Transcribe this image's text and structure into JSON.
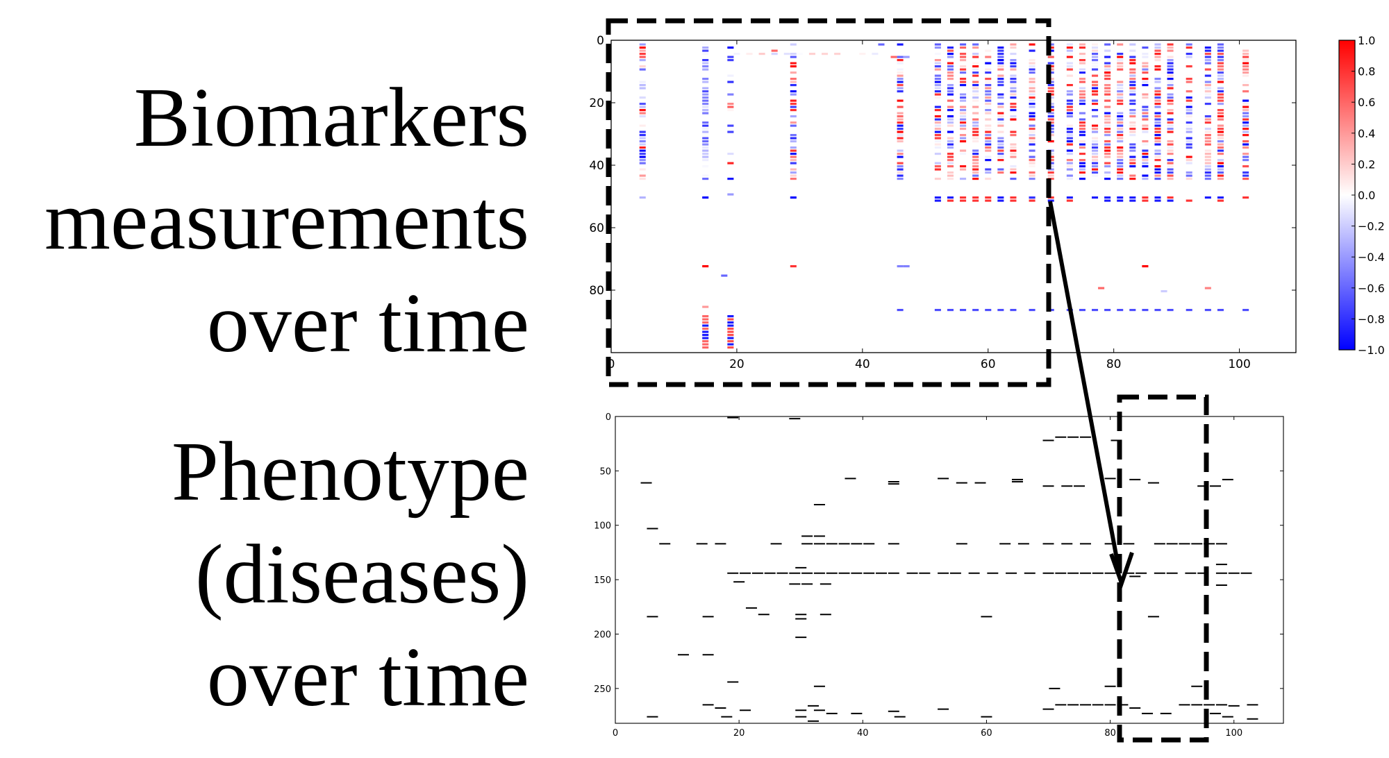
{
  "labels": {
    "biomarkers": [
      "Biomarkers",
      "measurements",
      "over time"
    ],
    "phenotype": [
      "Phenotype",
      "(diseases)",
      "over time"
    ]
  },
  "colors": {
    "negative": "#0000ff",
    "neutral": "#ffffff",
    "positive": "#ff0000",
    "ink": "#000000"
  },
  "chart_data": [
    {
      "type": "heatmap",
      "name": "biomarkers",
      "xlim": [
        0,
        109
      ],
      "ylim": [
        100,
        0
      ],
      "xticks": [
        0,
        20,
        40,
        60,
        80,
        100
      ],
      "yticks": [
        0,
        20,
        40,
        60,
        80
      ],
      "colorbar": {
        "range": [
          -1.0,
          1.0
        ],
        "ticks": [
          "1.0",
          "0.8",
          "0.6",
          "0.4",
          "0.2",
          "0.0",
          "−0.2",
          "−0.4",
          "−0.6",
          "−0.8",
          "−1.0"
        ]
      },
      "grid": false,
      "dense_columns": [
        5,
        15,
        19,
        29,
        46,
        52,
        54,
        56,
        58,
        60,
        62,
        64,
        67,
        70,
        73,
        75,
        77,
        79,
        81,
        83,
        85,
        87,
        89,
        92,
        95,
        97,
        101
      ],
      "sparse_cells": [
        [
          26,
          3,
          0.6
        ],
        [
          43,
          1,
          -0.6
        ],
        [
          45,
          5,
          0.6
        ],
        [
          47,
          5,
          -0.4
        ],
        [
          19,
          49,
          -0.4
        ],
        [
          67,
          50,
          -0.8
        ],
        [
          85,
          72,
          1.0
        ],
        [
          78,
          79,
          0.6
        ],
        [
          88,
          80,
          -0.2
        ],
        [
          95,
          79,
          0.5
        ],
        [
          15,
          72,
          1.0
        ],
        [
          15,
          85,
          0.4
        ],
        [
          18,
          75,
          -0.6
        ],
        [
          29,
          72,
          0.8
        ],
        [
          46,
          72,
          -0.5
        ],
        [
          47,
          72,
          -0.5
        ]
      ]
    },
    {
      "type": "scatter",
      "name": "phenotype",
      "marker": "short horizontal dash",
      "xlim": [
        0,
        108
      ],
      "ylim": [
        282,
        0
      ],
      "xticks": [
        0,
        20,
        40,
        60,
        80,
        100
      ],
      "yticks": [
        0,
        50,
        100,
        150,
        200,
        250
      ],
      "points": [
        [
          19,
          1
        ],
        [
          29,
          2
        ],
        [
          70,
          22
        ],
        [
          72,
          19
        ],
        [
          74,
          19
        ],
        [
          76,
          19
        ],
        [
          81,
          22
        ],
        [
          5,
          61
        ],
        [
          38,
          57
        ],
        [
          45,
          60
        ],
        [
          45,
          62
        ],
        [
          53,
          57
        ],
        [
          56,
          61
        ],
        [
          59,
          61
        ],
        [
          65,
          58
        ],
        [
          65,
          60
        ],
        [
          70,
          64
        ],
        [
          73,
          64
        ],
        [
          75,
          64
        ],
        [
          80,
          57
        ],
        [
          84,
          58
        ],
        [
          87,
          61
        ],
        [
          95,
          64
        ],
        [
          97,
          64
        ],
        [
          99,
          58
        ],
        [
          6,
          103
        ],
        [
          8,
          117
        ],
        [
          14,
          117
        ],
        [
          17,
          117
        ],
        [
          26,
          117
        ],
        [
          31,
          110
        ],
        [
          33,
          110
        ],
        [
          31,
          117
        ],
        [
          33,
          117
        ],
        [
          35,
          117
        ],
        [
          37,
          117
        ],
        [
          39,
          117
        ],
        [
          41,
          117
        ],
        [
          45,
          117
        ],
        [
          56,
          117
        ],
        [
          63,
          117
        ],
        [
          66,
          117
        ],
        [
          70,
          117
        ],
        [
          73,
          117
        ],
        [
          76,
          117
        ],
        [
          80,
          117
        ],
        [
          83,
          117
        ],
        [
          88,
          117
        ],
        [
          90,
          117
        ],
        [
          92,
          117
        ],
        [
          94,
          117
        ],
        [
          96,
          117
        ],
        [
          98,
          117
        ],
        [
          30,
          139
        ],
        [
          98,
          136
        ],
        [
          19,
          144
        ],
        [
          21,
          144
        ],
        [
          23,
          144
        ],
        [
          25,
          144
        ],
        [
          27,
          144
        ],
        [
          29,
          144
        ],
        [
          31,
          144
        ],
        [
          33,
          144
        ],
        [
          35,
          144
        ],
        [
          37,
          144
        ],
        [
          39,
          144
        ],
        [
          41,
          144
        ],
        [
          43,
          144
        ],
        [
          45,
          144
        ],
        [
          48,
          144
        ],
        [
          50,
          144
        ],
        [
          53,
          144
        ],
        [
          55,
          144
        ],
        [
          58,
          144
        ],
        [
          61,
          144
        ],
        [
          64,
          144
        ],
        [
          67,
          144
        ],
        [
          70,
          144
        ],
        [
          72,
          144
        ],
        [
          74,
          144
        ],
        [
          76,
          144
        ],
        [
          78,
          144
        ],
        [
          80,
          144
        ],
        [
          83,
          144
        ],
        [
          85,
          144
        ],
        [
          88,
          144
        ],
        [
          90,
          144
        ],
        [
          93,
          144
        ],
        [
          95,
          144
        ],
        [
          98,
          144
        ],
        [
          100,
          144
        ],
        [
          102,
          144
        ],
        [
          84,
          147
        ],
        [
          20,
          152
        ],
        [
          29,
          154
        ],
        [
          31,
          154
        ],
        [
          34,
          154
        ],
        [
          98,
          155
        ],
        [
          33,
          81
        ],
        [
          6,
          184
        ],
        [
          15,
          184
        ],
        [
          22,
          176
        ],
        [
          24,
          182
        ],
        [
          30,
          182
        ],
        [
          30,
          186
        ],
        [
          34,
          182
        ],
        [
          60,
          184
        ],
        [
          87,
          184
        ],
        [
          30,
          203
        ],
        [
          11,
          219
        ],
        [
          15,
          219
        ],
        [
          19,
          244
        ],
        [
          33,
          248
        ],
        [
          71,
          250
        ],
        [
          80,
          248
        ],
        [
          94,
          248
        ],
        [
          15,
          265
        ],
        [
          17,
          268
        ],
        [
          21,
          270
        ],
        [
          30,
          270
        ],
        [
          32,
          266
        ],
        [
          33,
          270
        ],
        [
          30,
          276
        ],
        [
          32,
          280
        ],
        [
          35,
          273
        ],
        [
          39,
          273
        ],
        [
          45,
          271
        ],
        [
          46,
          276
        ],
        [
          53,
          269
        ],
        [
          60,
          276
        ],
        [
          70,
          269
        ],
        [
          72,
          265
        ],
        [
          74,
          265
        ],
        [
          76,
          265
        ],
        [
          78,
          265
        ],
        [
          80,
          265
        ],
        [
          82,
          265
        ],
        [
          84,
          268
        ],
        [
          86,
          273
        ],
        [
          89,
          273
        ],
        [
          92,
          265
        ],
        [
          94,
          265
        ],
        [
          96,
          265
        ],
        [
          98,
          265
        ],
        [
          100,
          266
        ],
        [
          103,
          265
        ],
        [
          6,
          276
        ],
        [
          18,
          276
        ],
        [
          97,
          273
        ],
        [
          99,
          276
        ],
        [
          103,
          278
        ]
      ]
    }
  ]
}
